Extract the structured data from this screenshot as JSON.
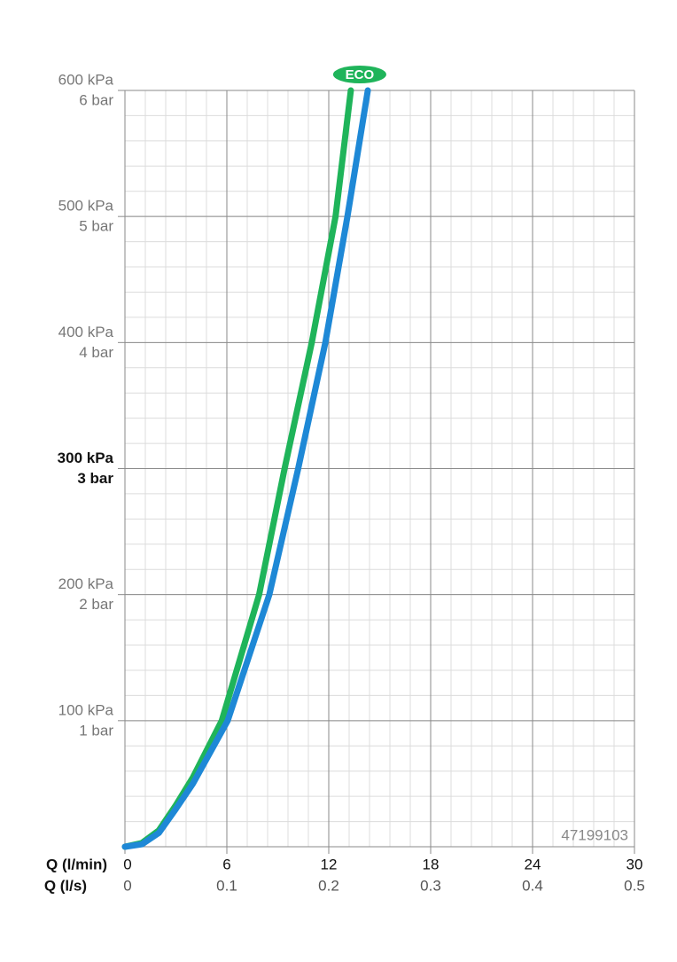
{
  "chart_data": {
    "type": "line",
    "series": [
      {
        "name": "ECO",
        "color": "#1fb45a",
        "x": [
          0,
          1,
          2,
          3,
          4,
          5.7,
          7.9,
          9.4,
          11,
          12.4,
          13.3
        ],
        "values": [
          0,
          3,
          13,
          33,
          55,
          100,
          200,
          300,
          400,
          500,
          600
        ]
      },
      {
        "color": "#1e88d6",
        "x": [
          0,
          1,
          2,
          3,
          4,
          6.05,
          8.5,
          10.2,
          11.8,
          13.1,
          14.3
        ],
        "values": [
          0,
          2,
          11,
          30,
          50,
          100,
          200,
          300,
          400,
          500,
          600
        ]
      }
    ],
    "xlabel": "Q (l/min)",
    "xlim": [
      0,
      30
    ],
    "xticks": [
      0,
      6,
      12,
      18,
      24,
      30
    ],
    "x2label": "Q (l/s)",
    "x2lim": [
      0,
      0.5
    ],
    "x2ticks": [
      0,
      0.1,
      0.2,
      0.3,
      0.4,
      0.5
    ],
    "ylim": [
      0,
      600
    ],
    "yticks": [
      {
        "value": 100,
        "label": "100 kPa"
      },
      {
        "value": 200,
        "label": "200 kPa"
      },
      {
        "value": 300,
        "label": "300 kPa"
      },
      {
        "value": 400,
        "label": "400 kPa"
      },
      {
        "value": 500,
        "label": "500 kPa"
      },
      {
        "value": 600,
        "label": "600 kPa"
      }
    ],
    "ytick_bar_labels": [
      "1 bar",
      "2 bar",
      "3 bar",
      "4 bar",
      "5 bar",
      "6 bar"
    ],
    "highlight_ytick": 300,
    "minor_grid": {
      "x": 1.2,
      "y": 20
    },
    "grid": true,
    "annotation": "47199103"
  }
}
